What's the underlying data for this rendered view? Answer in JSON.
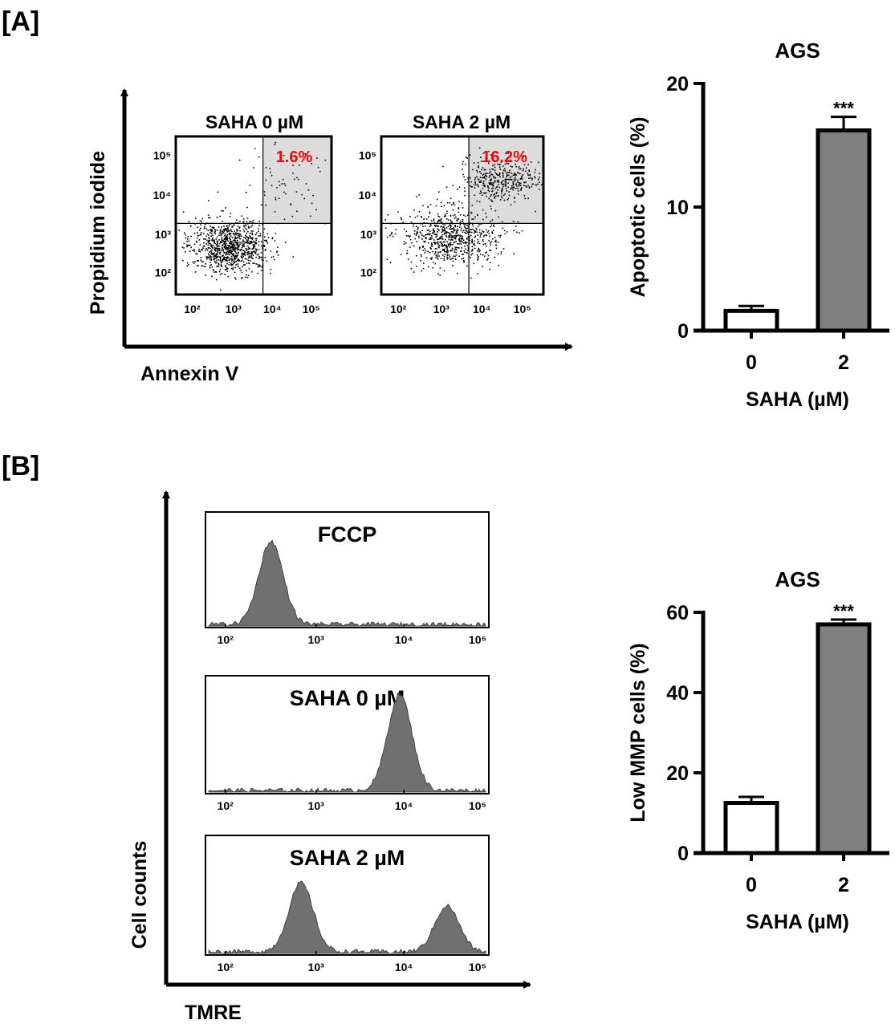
{
  "panel_labels": {
    "a": "[A]",
    "b": "[B]"
  },
  "colors": {
    "highlight": "#ff0000",
    "bar_gray": "#808080",
    "quadrant_fill": "#dcdcdc",
    "histogram_fill": "#707070"
  },
  "chart_data": [
    {
      "id": "A-flow",
      "type": "scatter",
      "panel": "[A]",
      "xlabel": "Annexin V",
      "ylabel": "Propidium iodide",
      "log_scale": true,
      "tick_labels": [
        "10²",
        "10³",
        "10⁴",
        "10⁵"
      ],
      "plots": [
        {
          "title": "SAHA 0 µM",
          "upper_right_percent": "1.6%"
        },
        {
          "title": "SAHA 2 µM",
          "upper_right_percent": "16.2%"
        }
      ]
    },
    {
      "id": "A-bar",
      "type": "bar",
      "title": "AGS",
      "xlabel": "SAHA (µM)",
      "ylabel": "Apoptotic cells (%)",
      "ylim": [
        0,
        20
      ],
      "yticks": [
        "0",
        "10",
        "20"
      ],
      "categories": [
        "0",
        "2"
      ],
      "values": [
        1.6,
        16.2
      ],
      "errors": [
        0.4,
        1.1
      ],
      "significance": [
        "",
        "***"
      ],
      "bar_colors": [
        "#ffffff",
        "#808080"
      ]
    },
    {
      "id": "B-hist",
      "type": "area",
      "panel": "[B]",
      "xlabel": "TMRE",
      "ylabel": "Cell counts",
      "log_scale": true,
      "tick_labels": [
        "10²",
        "10³",
        "10⁴",
        "10⁵"
      ],
      "plots": [
        {
          "title": "FCCP",
          "peaks": [
            {
              "log_center": 2.5,
              "height": 0.75
            }
          ]
        },
        {
          "title": "SAHA 0 µM",
          "peaks": [
            {
              "log_center": 4.0,
              "height": 0.85
            }
          ]
        },
        {
          "title": "SAHA 2 µM",
          "peaks": [
            {
              "log_center": 2.85,
              "height": 0.6
            },
            {
              "log_center": 4.55,
              "height": 0.4
            }
          ]
        }
      ]
    },
    {
      "id": "B-bar",
      "type": "bar",
      "title": "AGS",
      "xlabel": "SAHA (µM)",
      "ylabel": "Low MMP cells (%)",
      "ylim": [
        0,
        60
      ],
      "yticks": [
        "0",
        "20",
        "40",
        "60"
      ],
      "categories": [
        "0",
        "2"
      ],
      "values": [
        12.5,
        57
      ],
      "errors": [
        1.5,
        1.2
      ],
      "significance": [
        "",
        "***"
      ],
      "bar_colors": [
        "#ffffff",
        "#808080"
      ]
    }
  ]
}
